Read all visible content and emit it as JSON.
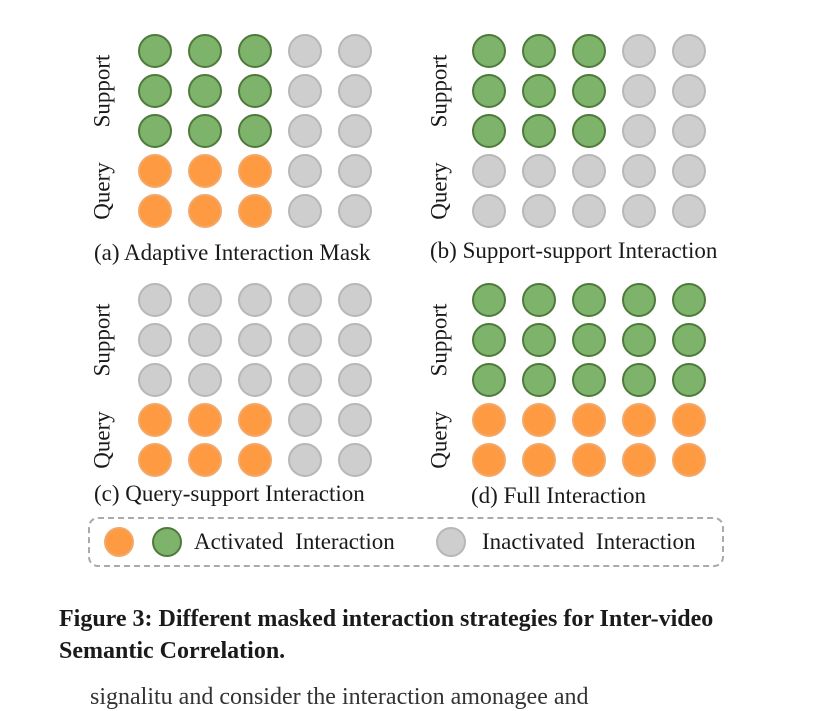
{
  "colors": {
    "activated_query_fill": "#fd9a42",
    "activated_query_stroke": "#f2a86a",
    "activated_support_fill": "#7db36b",
    "activated_support_stroke": "#4f7a3c",
    "inactive_fill": "#cecece",
    "inactive_stroke": "#b7b7b7",
    "legend_border": "#aaaaaa"
  },
  "panels": [
    {
      "caption": "(a) Adaptive Interaction Mask",
      "ylabel_support": "Support",
      "ylabel_query": "Query",
      "grid": [
        [
          "S",
          "S",
          "S",
          "I",
          "I"
        ],
        [
          "S",
          "S",
          "S",
          "I",
          "I"
        ],
        [
          "S",
          "S",
          "S",
          "I",
          "I"
        ],
        [
          "Q",
          "Q",
          "Q",
          "I",
          "I"
        ],
        [
          "Q",
          "Q",
          "Q",
          "I",
          "I"
        ]
      ]
    },
    {
      "caption": "(b) Support-support Interaction",
      "ylabel_support": "Support",
      "ylabel_query": "Query",
      "grid": [
        [
          "S",
          "S",
          "S",
          "I",
          "I"
        ],
        [
          "S",
          "S",
          "S",
          "I",
          "I"
        ],
        [
          "S",
          "S",
          "S",
          "I",
          "I"
        ],
        [
          "I",
          "I",
          "I",
          "I",
          "I"
        ],
        [
          "I",
          "I",
          "I",
          "I",
          "I"
        ]
      ]
    },
    {
      "caption": "(c) Query-support Interaction",
      "ylabel_support": "Support",
      "ylabel_query": "Query",
      "grid": [
        [
          "I",
          "I",
          "I",
          "I",
          "I"
        ],
        [
          "I",
          "I",
          "I",
          "I",
          "I"
        ],
        [
          "I",
          "I",
          "I",
          "I",
          "I"
        ],
        [
          "Q",
          "Q",
          "Q",
          "I",
          "I"
        ],
        [
          "Q",
          "Q",
          "Q",
          "I",
          "I"
        ]
      ]
    },
    {
      "caption": "(d) Full Interaction",
      "ylabel_support": "Support",
      "ylabel_query": "Query",
      "grid": [
        [
          "S",
          "S",
          "S",
          "S",
          "S"
        ],
        [
          "S",
          "S",
          "S",
          "S",
          "S"
        ],
        [
          "S",
          "S",
          "S",
          "S",
          "S"
        ],
        [
          "Q",
          "Q",
          "Q",
          "Q",
          "Q"
        ],
        [
          "Q",
          "Q",
          "Q",
          "Q",
          "Q"
        ]
      ]
    }
  ],
  "legend": {
    "activated_label": "Activated Interaction",
    "inactivated_label": "Inactivated Interaction"
  },
  "figure_caption": "Figure 3: Different masked interaction strategies for Inter-video Semantic Correlation.",
  "body_text_fragment": "signalitu and consider the interaction amonagee and"
}
